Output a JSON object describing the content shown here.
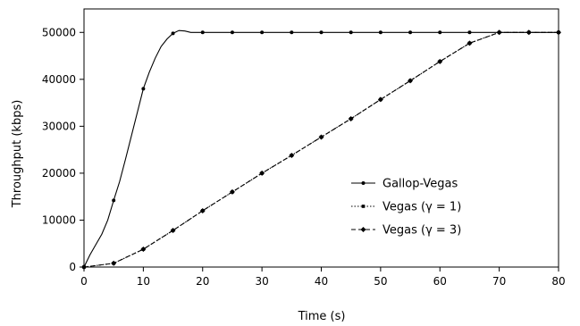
{
  "chart_data": {
    "type": "line",
    "title": "",
    "xlabel": "Time (s)",
    "ylabel": "Throughput (kbps)",
    "xlim": [
      0,
      80
    ],
    "ylim": [
      0,
      55000
    ],
    "xticks": [
      0,
      10,
      20,
      30,
      40,
      50,
      60,
      70,
      80
    ],
    "yticks": [
      0,
      10000,
      20000,
      30000,
      40000,
      50000
    ],
    "grid": false,
    "legend_position": "right-center",
    "series": [
      {
        "name": "Gallop-Vegas",
        "line_style": "solid",
        "marker": "dot",
        "points": [
          [
            0,
            0
          ],
          [
            1,
            2600
          ],
          [
            2,
            4800
          ],
          [
            3,
            7000
          ],
          [
            4,
            10000
          ],
          [
            5,
            14200
          ],
          [
            6,
            18200
          ],
          [
            7,
            23000
          ],
          [
            8,
            28000
          ],
          [
            9,
            33000
          ],
          [
            10,
            38000
          ],
          [
            11,
            41500
          ],
          [
            12,
            44500
          ],
          [
            13,
            47000
          ],
          [
            14,
            48600
          ],
          [
            15,
            49800
          ],
          [
            16,
            50400
          ],
          [
            17,
            50300
          ],
          [
            18,
            50000
          ],
          [
            20,
            50000
          ],
          [
            25,
            50000
          ],
          [
            30,
            50000
          ],
          [
            35,
            50000
          ],
          [
            40,
            50000
          ],
          [
            45,
            50000
          ],
          [
            50,
            50000
          ],
          [
            55,
            50000
          ],
          [
            60,
            50000
          ],
          [
            65,
            50000
          ],
          [
            70,
            50000
          ],
          [
            75,
            50000
          ],
          [
            80,
            50000
          ]
        ],
        "markers": [
          [
            0,
            0
          ],
          [
            5,
            14200
          ],
          [
            10,
            38000
          ],
          [
            15,
            49800
          ],
          [
            20,
            50000
          ],
          [
            25,
            50000
          ],
          [
            30,
            50000
          ],
          [
            35,
            50000
          ],
          [
            40,
            50000
          ],
          [
            45,
            50000
          ],
          [
            50,
            50000
          ],
          [
            55,
            50000
          ],
          [
            60,
            50000
          ],
          [
            65,
            50000
          ],
          [
            70,
            50000
          ],
          [
            75,
            50000
          ],
          [
            80,
            50000
          ]
        ]
      },
      {
        "name": "Vegas (γ = 1)",
        "line_style": "dotted",
        "marker": "square",
        "points": [
          [
            0,
            0
          ],
          [
            5,
            800
          ],
          [
            10,
            3800
          ],
          [
            15,
            7800
          ],
          [
            20,
            12000
          ],
          [
            25,
            16000
          ],
          [
            30,
            20000
          ],
          [
            35,
            23800
          ],
          [
            40,
            27700
          ],
          [
            45,
            31600
          ],
          [
            50,
            35700
          ],
          [
            55,
            39700
          ],
          [
            60,
            43800
          ],
          [
            65,
            47700
          ],
          [
            70,
            50000
          ],
          [
            75,
            50000
          ],
          [
            80,
            50000
          ]
        ],
        "markers": [
          [
            0,
            0
          ],
          [
            5,
            800
          ],
          [
            10,
            3800
          ],
          [
            15,
            7800
          ],
          [
            20,
            12000
          ],
          [
            25,
            16000
          ],
          [
            30,
            20000
          ],
          [
            35,
            23800
          ],
          [
            40,
            27700
          ],
          [
            45,
            31600
          ],
          [
            50,
            35700
          ],
          [
            55,
            39700
          ],
          [
            60,
            43800
          ],
          [
            65,
            47700
          ],
          [
            70,
            50000
          ],
          [
            75,
            50000
          ],
          [
            80,
            50000
          ]
        ]
      },
      {
        "name": "Vegas (γ = 3)",
        "line_style": "dashed",
        "marker": "diamond",
        "points": [
          [
            0,
            0
          ],
          [
            5,
            800
          ],
          [
            10,
            3800
          ],
          [
            15,
            7800
          ],
          [
            20,
            12000
          ],
          [
            25,
            16000
          ],
          [
            30,
            20000
          ],
          [
            35,
            23800
          ],
          [
            40,
            27700
          ],
          [
            45,
            31600
          ],
          [
            50,
            35700
          ],
          [
            55,
            39700
          ],
          [
            60,
            43800
          ],
          [
            65,
            47700
          ],
          [
            70,
            50000
          ],
          [
            75,
            50000
          ],
          [
            80,
            50000
          ]
        ],
        "markers": [
          [
            0,
            0
          ],
          [
            5,
            800
          ],
          [
            10,
            3800
          ],
          [
            15,
            7800
          ],
          [
            20,
            12000
          ],
          [
            25,
            16000
          ],
          [
            30,
            20000
          ],
          [
            35,
            23800
          ],
          [
            40,
            27700
          ],
          [
            45,
            31600
          ],
          [
            50,
            35700
          ],
          [
            55,
            39700
          ],
          [
            60,
            43800
          ],
          [
            65,
            47700
          ],
          [
            70,
            50000
          ],
          [
            75,
            50000
          ],
          [
            80,
            50000
          ]
        ]
      }
    ],
    "colors": {
      "line": "#000000",
      "axis": "#000000",
      "background": "#ffffff"
    }
  }
}
